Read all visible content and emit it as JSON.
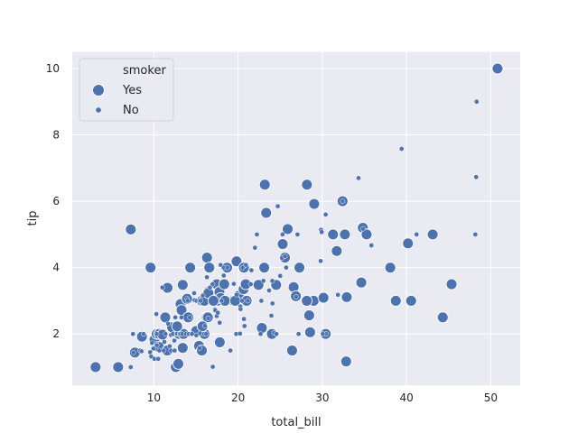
{
  "chart_data": {
    "type": "scatter",
    "title": "",
    "xlabel": "total_bill",
    "ylabel": "tip",
    "xlim": [
      0.3,
      53.5
    ],
    "ylim": [
      0.45,
      10.5
    ],
    "xticks": [
      10,
      20,
      30,
      40,
      50
    ],
    "yticks": [
      2,
      4,
      6,
      8,
      10
    ],
    "grid": true,
    "legend": {
      "title": "smoker",
      "placement": "top-left",
      "entries": [
        {
          "label": "Yes",
          "size": "large"
        },
        {
          "label": "No",
          "size": "small"
        }
      ]
    },
    "marker_color": "#4c72b0",
    "background_color": "#eaeaf2",
    "grid_color": "#ffffff",
    "series": [
      {
        "name": "Yes",
        "points": [
          [
            3.07,
            1.0
          ],
          [
            5.75,
            1.0
          ],
          [
            7.25,
            5.15
          ],
          [
            7.74,
            1.44
          ],
          [
            9.6,
            4.0
          ],
          [
            8.58,
            1.92
          ],
          [
            10.07,
            1.83
          ],
          [
            10.34,
            2.0
          ],
          [
            10.59,
            1.61
          ],
          [
            10.63,
            2.0
          ],
          [
            11.02,
            1.98
          ],
          [
            11.35,
            2.5
          ],
          [
            11.59,
            1.5
          ],
          [
            12.16,
            2.2
          ],
          [
            12.6,
            1.0
          ],
          [
            12.9,
            1.1
          ],
          [
            13.0,
            2.0
          ],
          [
            13.16,
            2.9
          ],
          [
            13.28,
            2.72
          ],
          [
            13.42,
            3.48
          ],
          [
            13.42,
            1.58
          ],
          [
            13.51,
            2.0
          ],
          [
            14.07,
            2.5
          ],
          [
            14.31,
            4.0
          ],
          [
            15.01,
            2.09
          ],
          [
            15.36,
            1.64
          ],
          [
            15.69,
            3.0
          ],
          [
            15.69,
            1.5
          ],
          [
            15.98,
            3.0
          ],
          [
            16.0,
            2.0
          ],
          [
            16.27,
            2.5
          ],
          [
            16.31,
            4.3
          ],
          [
            16.4,
            2.5
          ],
          [
            16.43,
            3.27
          ],
          [
            16.58,
            4.0
          ],
          [
            17.47,
            3.5
          ],
          [
            17.51,
            3.0
          ],
          [
            17.78,
            3.27
          ],
          [
            17.82,
            1.75
          ],
          [
            17.92,
            3.08
          ],
          [
            18.35,
            3.5
          ],
          [
            18.69,
            4.0
          ],
          [
            19.44,
            3.0
          ],
          [
            19.81,
            4.19
          ],
          [
            20.08,
            3.15
          ],
          [
            20.65,
            3.35
          ],
          [
            20.69,
            4.0
          ],
          [
            21.01,
            3.0
          ],
          [
            22.49,
            3.5
          ],
          [
            22.82,
            2.18
          ],
          [
            23.1,
            4.0
          ],
          [
            23.17,
            6.5
          ],
          [
            23.33,
            5.65
          ],
          [
            24.01,
            2.0
          ],
          [
            24.52,
            3.48
          ],
          [
            25.29,
            4.71
          ],
          [
            25.56,
            4.3
          ],
          [
            25.89,
            5.16
          ],
          [
            26.59,
            3.41
          ],
          [
            26.86,
            3.14
          ],
          [
            27.28,
            4.0
          ],
          [
            28.17,
            6.5
          ],
          [
            28.44,
            2.56
          ],
          [
            28.55,
            2.05
          ],
          [
            28.97,
            3.0
          ],
          [
            30.14,
            3.09
          ],
          [
            30.4,
            2.0
          ],
          [
            31.27,
            5.0
          ],
          [
            32.4,
            6.0
          ],
          [
            32.68,
            5.0
          ],
          [
            32.83,
            1.17
          ],
          [
            32.9,
            3.11
          ],
          [
            34.63,
            3.55
          ],
          [
            34.81,
            5.2
          ],
          [
            35.26,
            5.0
          ],
          [
            38.07,
            4.0
          ],
          [
            38.73,
            3.0
          ],
          [
            40.55,
            3.0
          ],
          [
            45.35,
            3.5
          ],
          [
            50.81,
            10.0
          ],
          [
            11.61,
            3.39
          ],
          [
            12.76,
            2.23
          ],
          [
            13.94,
            3.06
          ],
          [
            15.77,
            2.23
          ],
          [
            16.47,
            3.23
          ],
          [
            17.07,
            3.0
          ],
          [
            18.43,
            3.0
          ],
          [
            19.65,
            3.0
          ],
          [
            20.9,
            3.5
          ],
          [
            22.42,
            3.48
          ],
          [
            26.41,
            1.5
          ],
          [
            28.15,
            3.0
          ],
          [
            29.03,
            5.92
          ],
          [
            31.71,
            4.5
          ],
          [
            40.17,
            4.73
          ],
          [
            43.11,
            5.0
          ],
          [
            44.3,
            2.5
          ]
        ]
      },
      {
        "name": "No",
        "points": [
          [
            7.25,
            1.0
          ],
          [
            7.51,
            2.0
          ],
          [
            7.56,
            1.44
          ],
          [
            8.35,
            1.5
          ],
          [
            8.52,
            1.48
          ],
          [
            8.77,
            2.0
          ],
          [
            9.55,
            1.45
          ],
          [
            9.68,
            1.32
          ],
          [
            9.78,
            1.73
          ],
          [
            9.94,
            1.56
          ],
          [
            10.07,
            1.25
          ],
          [
            10.27,
            1.71
          ],
          [
            10.29,
            2.6
          ],
          [
            10.33,
            1.67
          ],
          [
            10.33,
            2.0
          ],
          [
            10.34,
            1.66
          ],
          [
            10.51,
            1.25
          ],
          [
            10.65,
            1.5
          ],
          [
            11.17,
            1.5
          ],
          [
            11.24,
            1.76
          ],
          [
            11.38,
            2.0
          ],
          [
            11.69,
            2.31
          ],
          [
            11.87,
            1.63
          ],
          [
            12.02,
            1.97
          ],
          [
            12.03,
            1.5
          ],
          [
            12.26,
            2.0
          ],
          [
            12.43,
            1.8
          ],
          [
            12.46,
            1.5
          ],
          [
            12.54,
            2.5
          ],
          [
            12.69,
            2.0
          ],
          [
            12.74,
            2.01
          ],
          [
            13.03,
            2.0
          ],
          [
            13.13,
            2.0
          ],
          [
            13.27,
            2.5
          ],
          [
            13.37,
            2.0
          ],
          [
            13.81,
            2.0
          ],
          [
            13.94,
            3.06
          ],
          [
            14.15,
            2.0
          ],
          [
            14.26,
            2.5
          ],
          [
            14.48,
            2.0
          ],
          [
            14.52,
            2.0
          ],
          [
            14.78,
            3.23
          ],
          [
            14.83,
            3.02
          ],
          [
            15.04,
            1.96
          ],
          [
            15.06,
            3.0
          ],
          [
            15.38,
            3.0
          ],
          [
            15.42,
            1.57
          ],
          [
            15.48,
            2.02
          ],
          [
            15.53,
            3.0
          ],
          [
            15.81,
            3.16
          ],
          [
            15.95,
            2.0
          ],
          [
            16.04,
            2.24
          ],
          [
            16.21,
            2.0
          ],
          [
            16.29,
            3.71
          ],
          [
            16.45,
            2.47
          ],
          [
            16.66,
            3.4
          ],
          [
            16.97,
            3.5
          ],
          [
            16.99,
            1.01
          ],
          [
            17.26,
            2.74
          ],
          [
            17.29,
            2.71
          ],
          [
            17.46,
            2.54
          ],
          [
            17.59,
            2.64
          ],
          [
            17.81,
            2.34
          ],
          [
            17.92,
            4.08
          ],
          [
            18.04,
            3.0
          ],
          [
            18.24,
            3.76
          ],
          [
            18.28,
            4.0
          ],
          [
            18.29,
            3.76
          ],
          [
            18.71,
            4.0
          ],
          [
            19.08,
            1.5
          ],
          [
            19.49,
            3.51
          ],
          [
            19.77,
            2.0
          ],
          [
            19.82,
            3.18
          ],
          [
            20.23,
            2.01
          ],
          [
            20.27,
            2.83
          ],
          [
            20.29,
            2.75
          ],
          [
            20.45,
            3.0
          ],
          [
            20.69,
            2.45
          ],
          [
            20.76,
            2.24
          ],
          [
            20.92,
            4.08
          ],
          [
            21.16,
            3.0
          ],
          [
            21.5,
            3.5
          ],
          [
            21.58,
            3.92
          ],
          [
            22.23,
            5.0
          ],
          [
            22.67,
            2.0
          ],
          [
            22.76,
            3.0
          ],
          [
            23.68,
            3.31
          ],
          [
            23.95,
            2.55
          ],
          [
            24.06,
            3.6
          ],
          [
            24.08,
            2.92
          ],
          [
            24.27,
            2.03
          ],
          [
            24.55,
            2.0
          ],
          [
            24.71,
            5.85
          ],
          [
            25.0,
            3.75
          ],
          [
            25.21,
            4.29
          ],
          [
            25.28,
            5.0
          ],
          [
            25.71,
            4.0
          ],
          [
            26.88,
            3.12
          ],
          [
            27.05,
            5.0
          ],
          [
            27.18,
            2.0
          ],
          [
            29.85,
            5.14
          ],
          [
            29.93,
            5.07
          ],
          [
            30.46,
            2.0
          ],
          [
            30.06,
            2.0
          ],
          [
            30.4,
            5.6
          ],
          [
            31.85,
            3.18
          ],
          [
            32.4,
            6.0
          ],
          [
            34.3,
            6.7
          ],
          [
            34.83,
            5.17
          ],
          [
            35.83,
            4.67
          ],
          [
            39.42,
            7.58
          ],
          [
            41.19,
            5.0
          ],
          [
            48.17,
            5.0
          ],
          [
            48.27,
            6.73
          ],
          [
            48.33,
            9.0
          ],
          [
            20.53,
            4.0
          ],
          [
            25.56,
            4.34
          ],
          [
            22.0,
            4.6
          ],
          [
            23.0,
            3.6
          ],
          [
            29.8,
            4.2
          ],
          [
            11.0,
            3.4
          ],
          [
            14.0,
            3.0
          ]
        ]
      }
    ]
  }
}
